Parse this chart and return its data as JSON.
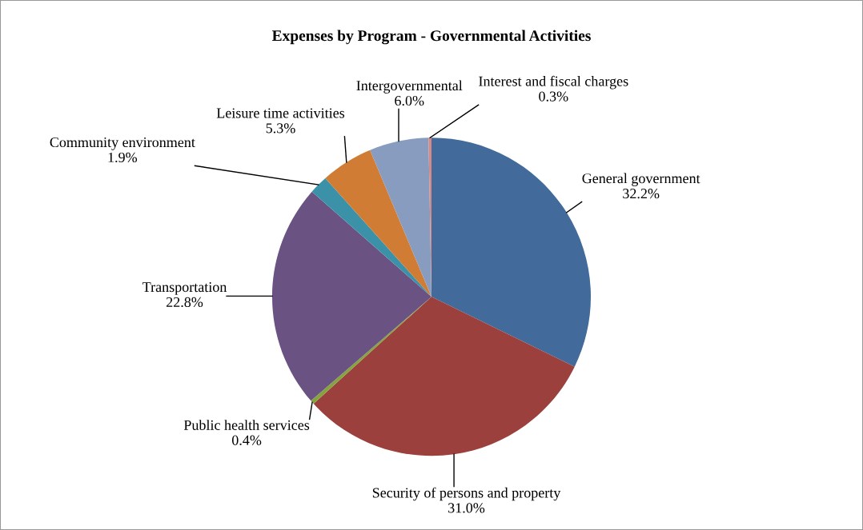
{
  "chart_data": {
    "type": "pie",
    "title": "Expenses by Program - Governmental Activities",
    "categories": [
      "General government",
      "Security of persons and property",
      "Public health services",
      "Transportation",
      "Community environment",
      "Leisure time activities",
      "Intergovernmental",
      "Interest and fiscal charges"
    ],
    "values": [
      32.2,
      31.0,
      0.4,
      22.8,
      1.9,
      5.3,
      6.0,
      0.3
    ],
    "value_labels": [
      "32.2%",
      "31.0%",
      "0.4%",
      "22.8%",
      "1.9%",
      "5.3%",
      "6.0%",
      "0.3%"
    ],
    "colors": [
      "#426a9a",
      "#9b403c",
      "#85a43e",
      "#6a5283",
      "#3b92a8",
      "#d07c34",
      "#889cc0",
      "#d48a86"
    ],
    "legend": false
  }
}
